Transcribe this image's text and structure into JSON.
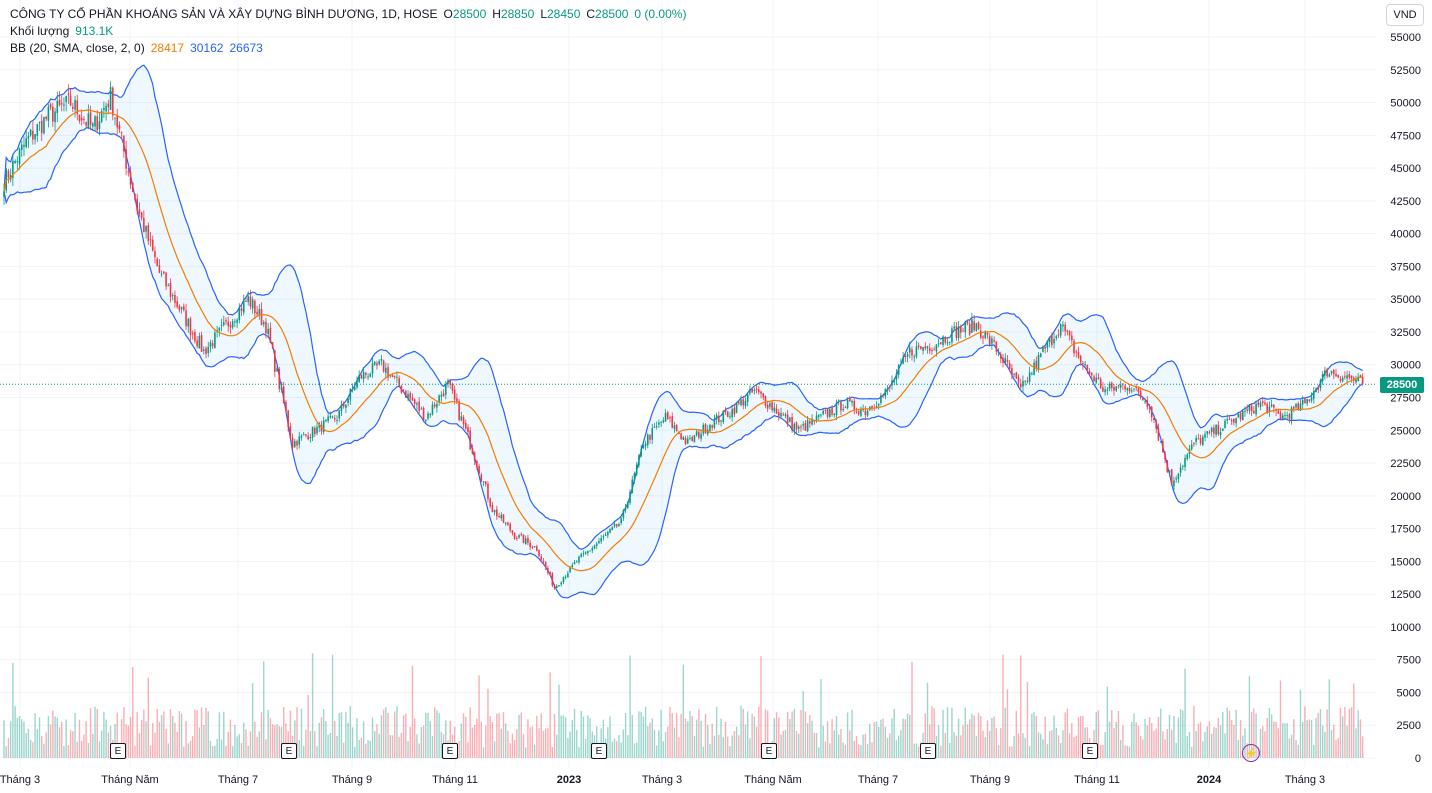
{
  "legend": {
    "title": "CÔNG TY CỔ PHẦN KHOÁNG SẢN VÀ XÂY DỰNG BÌNH DƯƠNG, 1D, HOSE",
    "open_label": "O",
    "open": "28500",
    "high_label": "H",
    "high": "28850",
    "low_label": "L",
    "low": "28450",
    "close_label": "C",
    "close": "28500",
    "change": "0 (0.00%)",
    "volume_label": "Khối lượng",
    "volume": "913.1K",
    "bb_label": "BB (20, SMA, close, 2, 0)",
    "bb_basis": "28417",
    "bb_upper": "30162",
    "bb_lower": "26673"
  },
  "currency": "VND",
  "last_price": "28500",
  "event_marker": "E",
  "colors": {
    "up": "#089981",
    "down": "#f23645",
    "basis": "#f57c00",
    "band": "#2962ff",
    "band_fill": "#2196f3"
  },
  "chart_data": {
    "type": "candlestick",
    "y_axis_ticks": [
      "55000",
      "52500",
      "50000",
      "47500",
      "45000",
      "42500",
      "40000",
      "37500",
      "35000",
      "32500",
      "30000",
      "27500",
      "25000",
      "22500",
      "20000",
      "17500",
      "15000",
      "12500",
      "10000",
      "7500",
      "5000",
      "2500",
      "0"
    ],
    "x_axis_labels": [
      {
        "label": "Tháng 3",
        "bold": false
      },
      {
        "label": "Tháng Năm",
        "bold": false
      },
      {
        "label": "Tháng 7",
        "bold": false
      },
      {
        "label": "Tháng 9",
        "bold": false
      },
      {
        "label": "Tháng 11",
        "bold": false
      },
      {
        "label": "2023",
        "bold": true
      },
      {
        "label": "Tháng 3",
        "bold": false
      },
      {
        "label": "Tháng Năm",
        "bold": false
      },
      {
        "label": "Tháng 7",
        "bold": false
      },
      {
        "label": "Tháng 9",
        "bold": false
      },
      {
        "label": "Tháng 11",
        "bold": false
      },
      {
        "label": "2024",
        "bold": true
      },
      {
        "label": "Tháng 3",
        "bold": false
      }
    ],
    "price_range": [
      7000,
      56500
    ],
    "last_close": 28500,
    "price_path": [
      [
        0,
        44000
      ],
      [
        10,
        47000
      ],
      [
        20,
        49000
      ],
      [
        30,
        50000
      ],
      [
        40,
        48000
      ],
      [
        48,
        50500
      ],
      [
        60,
        42000
      ],
      [
        70,
        37000
      ],
      [
        80,
        34000
      ],
      [
        90,
        31000
      ],
      [
        100,
        33000
      ],
      [
        110,
        35000
      ],
      [
        118,
        33000
      ],
      [
        130,
        24000
      ],
      [
        140,
        25000
      ],
      [
        150,
        26000
      ],
      [
        160,
        29000
      ],
      [
        170,
        30000
      ],
      [
        180,
        28000
      ],
      [
        190,
        26000
      ],
      [
        200,
        28500
      ],
      [
        210,
        24000
      ],
      [
        220,
        19000
      ],
      [
        230,
        17000
      ],
      [
        240,
        16000
      ],
      [
        248,
        13000
      ],
      [
        258,
        15000
      ],
      [
        268,
        16500
      ],
      [
        278,
        18000
      ],
      [
        288,
        24000
      ],
      [
        298,
        26000
      ],
      [
        308,
        24000
      ],
      [
        318,
        25500
      ],
      [
        328,
        26500
      ],
      [
        338,
        28000
      ],
      [
        348,
        26500
      ],
      [
        358,
        25000
      ],
      [
        368,
        26000
      ],
      [
        378,
        27000
      ],
      [
        388,
        26500
      ],
      [
        398,
        28000
      ],
      [
        408,
        31000
      ],
      [
        418,
        31500
      ],
      [
        428,
        32500
      ],
      [
        438,
        33000
      ],
      [
        448,
        31000
      ],
      [
        458,
        28000
      ],
      [
        468,
        31000
      ],
      [
        476,
        33000
      ],
      [
        486,
        30000
      ],
      [
        496,
        28000
      ],
      [
        506,
        28500
      ],
      [
        516,
        27000
      ],
      [
        526,
        21000
      ],
      [
        536,
        24000
      ],
      [
        546,
        25000
      ],
      [
        556,
        26000
      ],
      [
        566,
        27000
      ],
      [
        576,
        26000
      ],
      [
        586,
        27000
      ],
      [
        596,
        29500
      ],
      [
        606,
        29000
      ],
      [
        612,
        28500
      ]
    ]
  }
}
